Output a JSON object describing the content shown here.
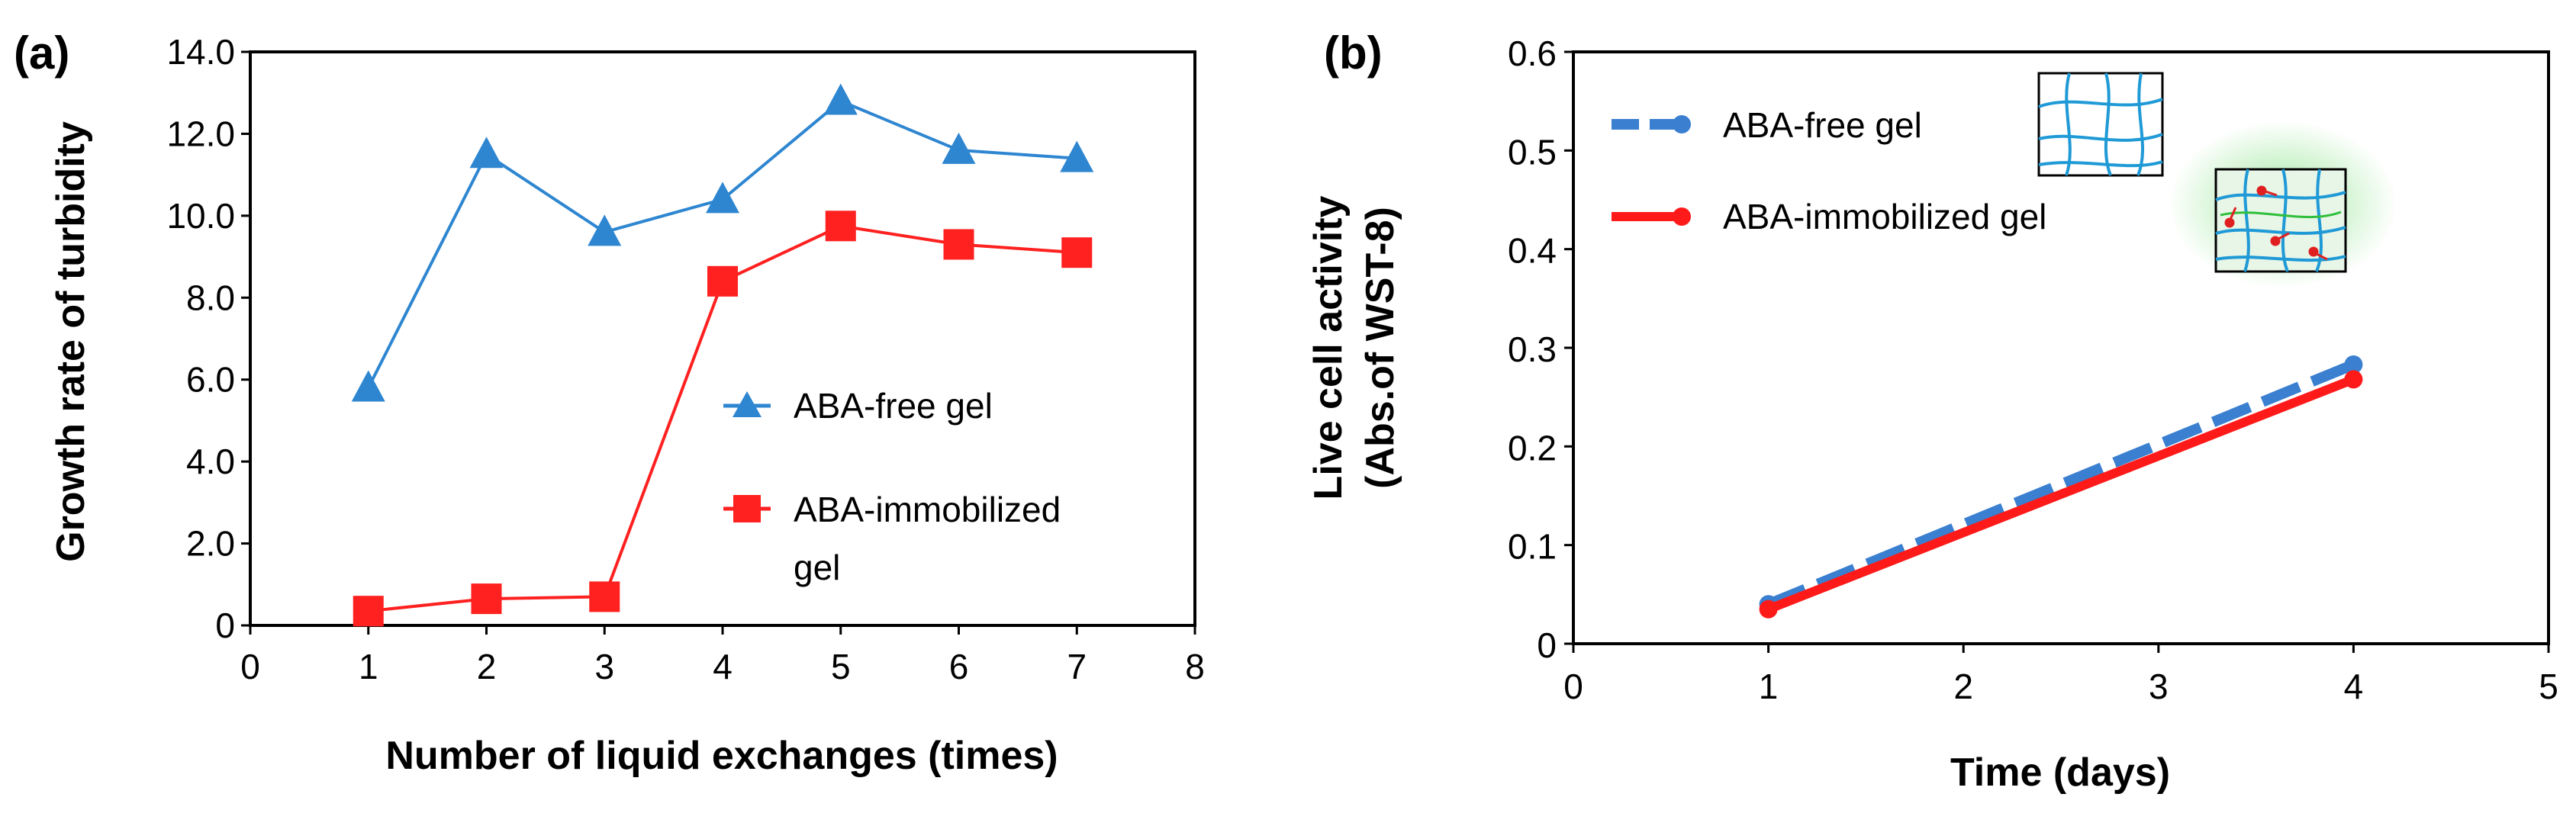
{
  "chart_data": [
    {
      "panel": "(a)",
      "type": "line",
      "xlabel": "Number of liquid exchanges (times)",
      "ylabel": "Growth rate of turbidity",
      "xlim": [
        0,
        8
      ],
      "ylim": [
        0,
        14
      ],
      "xticks": [
        "0",
        "1",
        "2",
        "3",
        "4",
        "5",
        "6",
        "7",
        "8"
      ],
      "yticks": [
        "0",
        "2.0",
        "4.0",
        "6.0",
        "8.0",
        "10.0",
        "12.0",
        "14.0"
      ],
      "x": [
        1,
        2,
        3,
        4,
        5,
        6,
        7
      ],
      "series": [
        {
          "name": "ABA-free gel",
          "color": "#2e86d1",
          "marker": "triangle",
          "values": [
            5.8,
            11.5,
            9.6,
            10.4,
            12.8,
            11.6,
            11.4
          ]
        },
        {
          "name": "ABA-immobilized",
          "name_line2": "gel",
          "color": "#ff2020",
          "marker": "square",
          "values": [
            0.35,
            0.65,
            0.7,
            8.4,
            9.75,
            9.3,
            9.1
          ]
        }
      ],
      "legend_position": "center-right"
    },
    {
      "panel": "(b)",
      "type": "line",
      "xlabel": "Time (days)",
      "ylabel": "Live cell activity",
      "ylabel_line2": "(Abs.of WST-8)",
      "xlim": [
        0,
        5
      ],
      "ylim": [
        0,
        0.6
      ],
      "xticks": [
        "0",
        "1",
        "2",
        "3",
        "4",
        "5"
      ],
      "yticks": [
        "0",
        "0.1",
        "0.2",
        "0.3",
        "0.4",
        "0.5",
        "0.6"
      ],
      "x": [
        1,
        4
      ],
      "series": [
        {
          "name": "ABA-free gel",
          "color": "#3a7fd0",
          "style": "dashed",
          "values": [
            0.04,
            0.283
          ]
        },
        {
          "name": "ABA-immobilized gel",
          "color": "#ff1a1a",
          "style": "solid",
          "values": [
            0.035,
            0.268
          ]
        }
      ],
      "legend_position": "top-left",
      "inset_icons": [
        "gel-network-icon",
        "aba-gel-network-icon"
      ]
    }
  ]
}
